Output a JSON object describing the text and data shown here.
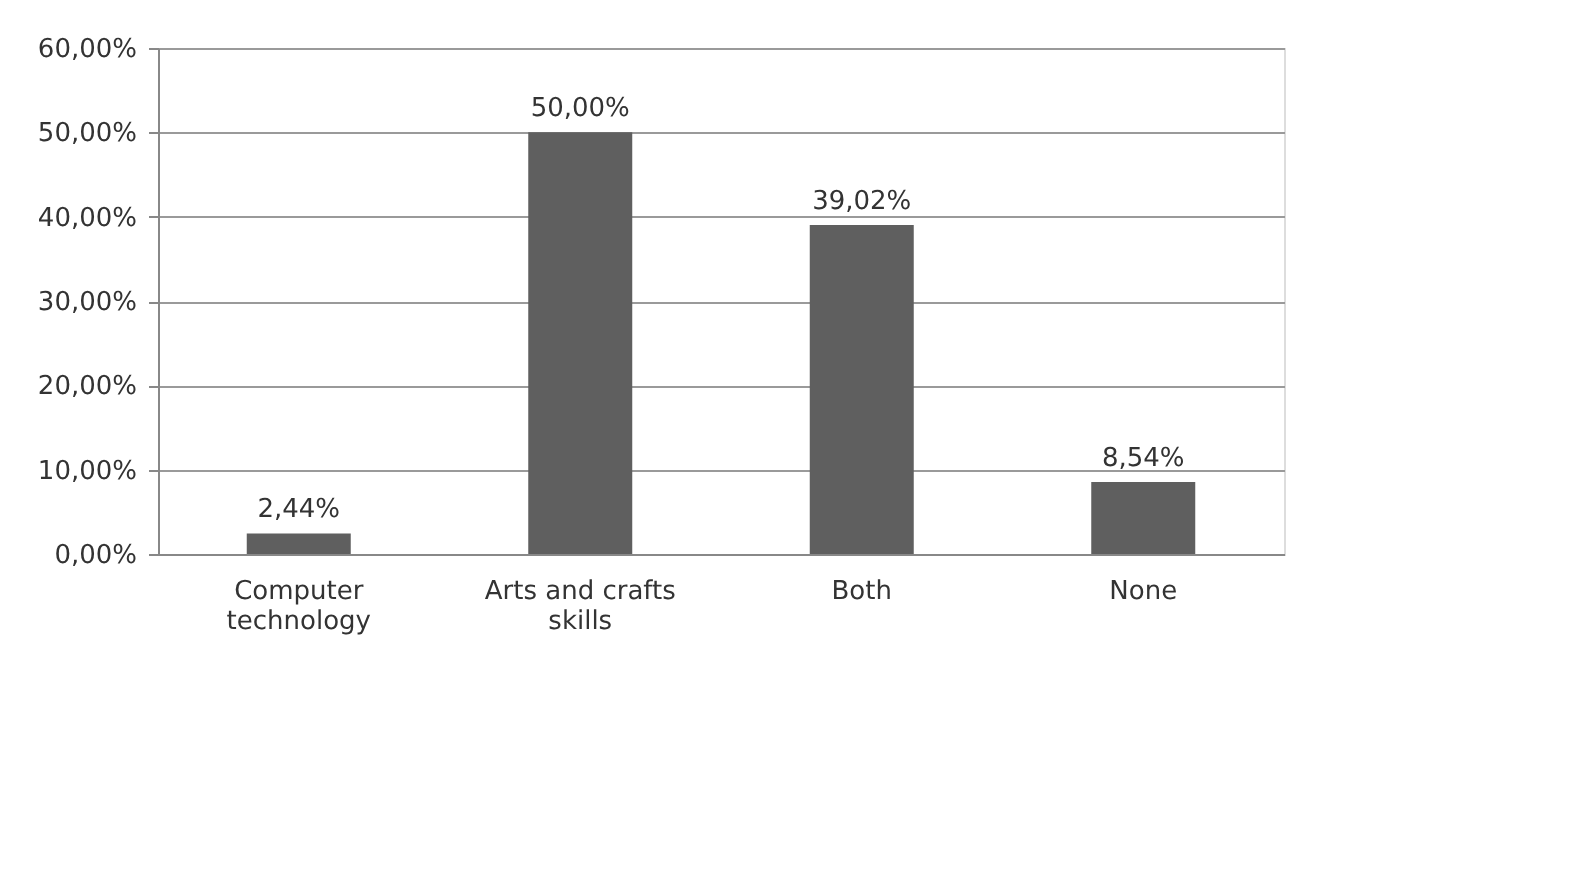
{
  "chart_data": {
    "type": "bar",
    "categories": [
      "Computer technology",
      "Arts and crafts skills",
      "Both",
      "None"
    ],
    "values": [
      2.44,
      50.0,
      39.02,
      8.54
    ],
    "value_labels": [
      "2,44%",
      "50,00%",
      "39,02%",
      "8,54%"
    ],
    "color": "#5f5f5f",
    "ylim": [
      0,
      60
    ],
    "yticks": [
      {
        "value": 0,
        "label": "0,00%"
      },
      {
        "value": 10,
        "label": "10,00%"
      },
      {
        "value": 20,
        "label": "20,00%"
      },
      {
        "value": 30,
        "label": "30,00%"
      },
      {
        "value": 40,
        "label": "40,00%"
      },
      {
        "value": 50,
        "label": "50,00%"
      },
      {
        "value": 60,
        "label": "60,00%"
      }
    ],
    "grid": "y"
  }
}
